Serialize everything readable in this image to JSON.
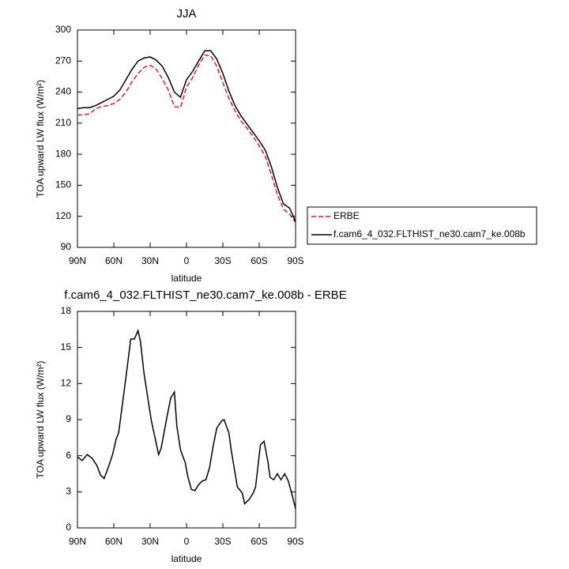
{
  "chart_data": [
    {
      "type": "line",
      "title": "JJA",
      "xlabel": "latitude",
      "ylabel": "TOA upward LW flux (W/m²)",
      "x": [
        90,
        85,
        80,
        75,
        70,
        65,
        60,
        55,
        50,
        45,
        40,
        35,
        30,
        25,
        20,
        15,
        10,
        5,
        0,
        -5,
        -10,
        -15,
        -20,
        -25,
        -30,
        -35,
        -40,
        -45,
        -50,
        -55,
        -60,
        -65,
        -70,
        -75,
        -80,
        -85,
        -90
      ],
      "series": [
        {
          "name": "ERBE",
          "color": "#e41a1c",
          "linestyle": "dashed",
          "values": [
            218,
            218,
            219,
            224,
            226,
            227,
            229,
            233,
            240,
            250,
            258,
            264,
            266,
            262,
            253,
            242,
            226,
            225,
            245,
            254,
            266,
            276,
            275,
            265,
            249,
            234,
            222,
            212,
            205,
            197,
            188,
            178,
            160,
            141,
            127,
            122,
            114
          ]
        },
        {
          "name": "f.cam6_4_032.FLTHIST_ne30.cam7_ke.008b",
          "color": "#000000",
          "linestyle": "solid",
          "values": [
            224,
            225,
            225,
            227,
            230,
            233,
            236,
            242,
            252,
            262,
            270,
            273,
            274,
            271,
            265,
            254,
            240,
            235,
            252,
            260,
            270,
            280,
            280,
            272,
            258,
            241,
            227,
            217,
            209,
            201,
            193,
            184,
            168,
            148,
            132,
            128,
            115
          ]
        }
      ],
      "xlim": [
        90,
        -90
      ],
      "xticks": [
        {
          "value": 90,
          "label": "90N"
        },
        {
          "value": 60,
          "label": "60N"
        },
        {
          "value": 30,
          "label": "30N"
        },
        0,
        {
          "value": -30,
          "label": "30S"
        },
        {
          "value": -60,
          "label": "60S"
        },
        {
          "value": -90,
          "label": "90S"
        }
      ],
      "ylim": [
        90,
        300
      ],
      "yticks": [
        90,
        120,
        150,
        180,
        210,
        240,
        270,
        300
      ],
      "legend": "right"
    },
    {
      "type": "line",
      "title": "f.cam6_4_032.FLTHIST_ne30.cam7_ke.008b - ERBE",
      "xlabel": "latitude",
      "ylabel": "TOA upward LW flux (W/m²)",
      "x": [
        90,
        86,
        82,
        78,
        74,
        71,
        68,
        65,
        61,
        58,
        56,
        53,
        50,
        46,
        43,
        40,
        38,
        35,
        33,
        29,
        26,
        23,
        21,
        18,
        16,
        13,
        10,
        8,
        5,
        1,
        -1,
        -4,
        -7,
        -10,
        -13,
        -16,
        -19,
        -22,
        -25,
        -29,
        -31,
        -35,
        -37,
        -40,
        -42,
        -46,
        -48,
        -52,
        -55,
        -57,
        -61,
        -64,
        -67,
        -69,
        -72,
        -75,
        -78,
        -81,
        -84,
        -87,
        -90
      ],
      "values": [
        5.9,
        5.6,
        6.1,
        5.8,
        5.2,
        4.4,
        4.1,
        4.9,
        6.1,
        7.4,
        7.9,
        10.2,
        12.5,
        15.7,
        15.7,
        16.4,
        15.5,
        12.8,
        11.5,
        8.9,
        7.5,
        6.1,
        6.6,
        8.2,
        9.3,
        10.8,
        11.3,
        8.5,
        6.5,
        5.4,
        4.3,
        3.2,
        3.1,
        3.6,
        3.9,
        4.0,
        5.0,
        6.8,
        8.3,
        8.9,
        9.0,
        7.9,
        6.4,
        4.6,
        3.4,
        2.9,
        2.0,
        2.4,
        2.9,
        3.4,
        6.9,
        7.2,
        5.6,
        4.2,
        4.0,
        4.5,
        4.0,
        4.5,
        3.9,
        2.8,
        1.6
      ],
      "color": "#000000",
      "xlim": [
        90,
        -90
      ],
      "xticks": [
        {
          "value": 90,
          "label": "90N"
        },
        {
          "value": 60,
          "label": "60N"
        },
        {
          "value": 30,
          "label": "30N"
        },
        0,
        {
          "value": -30,
          "label": "30S"
        },
        {
          "value": -60,
          "label": "60S"
        },
        {
          "value": -90,
          "label": "90S"
        }
      ],
      "ylim": [
        0,
        18
      ],
      "yticks": [
        0,
        3,
        6,
        9,
        12,
        15,
        18
      ]
    }
  ]
}
